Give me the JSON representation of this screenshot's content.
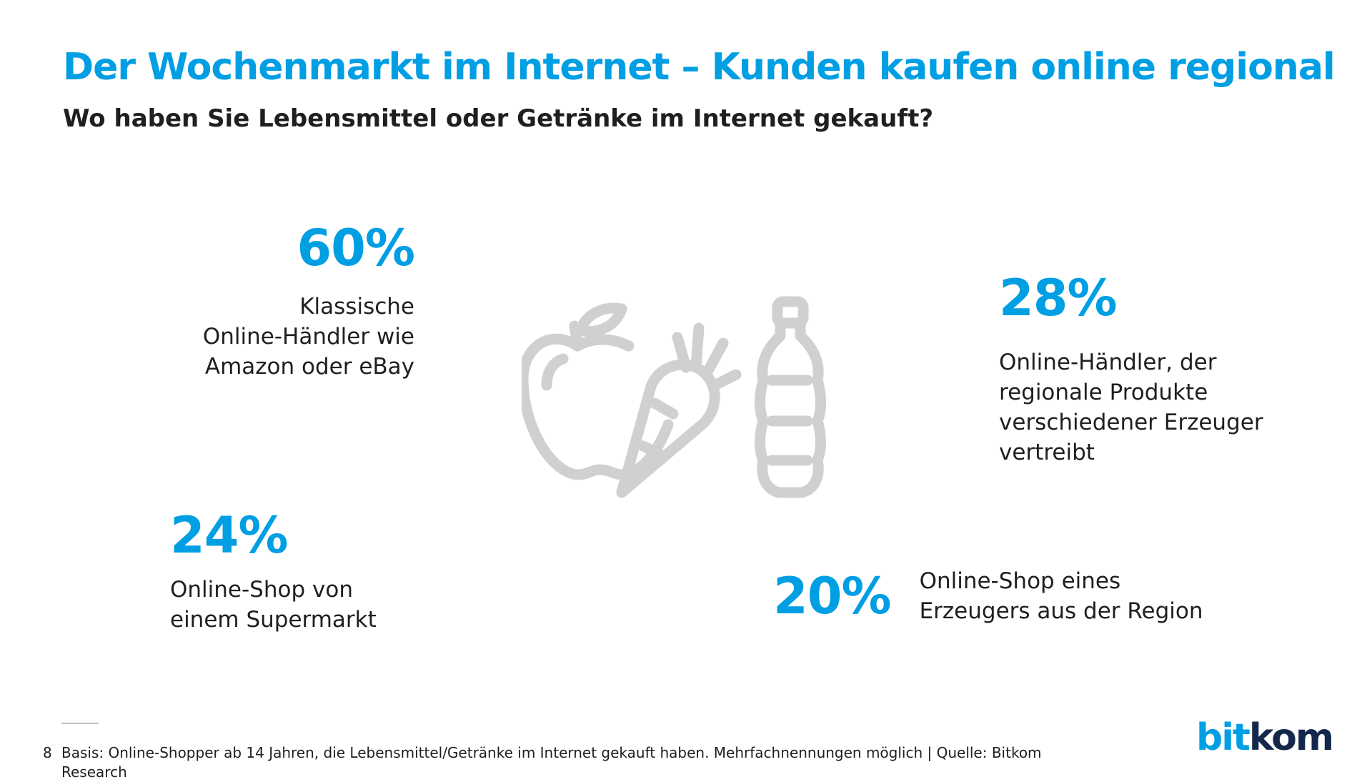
{
  "title": "Der Wochenmarkt im Internet – Kunden kaufen online regional",
  "subtitle": "Wo haben Sie Lebensmittel oder Getränke im Internet gekauft?",
  "stats": [
    {
      "percent": "60%",
      "lines": [
        "Klassische",
        "Online-Händler wie",
        "Amazon oder eBay"
      ]
    },
    {
      "percent": "28%",
      "lines": [
        "Online-Händler, der",
        "regionale Produkte",
        "verschiedener Erzeuger",
        "vertreibt"
      ]
    },
    {
      "percent": "24%",
      "lines": [
        "Online-Shop von",
        "einem Supermarkt"
      ]
    },
    {
      "percent": "20%",
      "lines": [
        "Online-Shop eines",
        "Erzeugers aus der Region"
      ]
    }
  ],
  "chart_data": {
    "type": "bar",
    "title": "Der Wochenmarkt im Internet – Kunden kaufen online regional",
    "categories": [
      "Klassische Online-Händler wie Amazon oder eBay",
      "Online-Händler, der regionale Produkte verschiedener Erzeuger vertreibt",
      "Online-Shop von einem Supermarkt",
      "Online-Shop eines Erzeugers aus der Region"
    ],
    "values": [
      60,
      28,
      24,
      20
    ],
    "unit": "%"
  },
  "icons": [
    "apple-icon",
    "carrot-icon",
    "bottle-icon"
  ],
  "colors": {
    "accent": "#009ee3",
    "icon_gray": "#d0d0d0",
    "text": "#1f1f1f",
    "logo_dark": "#14284b"
  },
  "footer": {
    "page_number": "8",
    "note": "Basis: Online-Shopper ab 14 Jahren, die Lebensmittel/Getränke im Internet gekauft haben. Mehrfachnennungen möglich | Quelle: Bitkom Research"
  },
  "logo": {
    "part1": "bit",
    "part2": "kom"
  }
}
